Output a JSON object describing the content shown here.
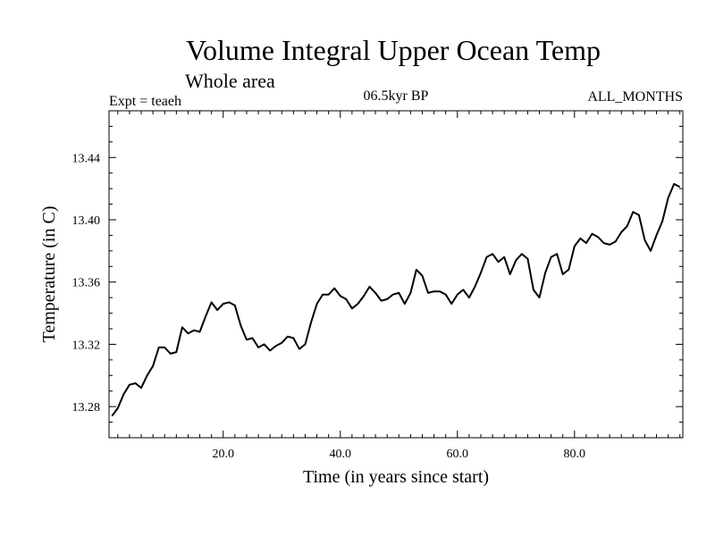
{
  "chart_data": {
    "type": "line",
    "title": "Volume Integral Upper Ocean Temp",
    "subtitle": "Whole area",
    "header_left": "Expt = teaeh",
    "header_center": "06.5kyr BP",
    "header_right": "ALL_MONTHS",
    "xlabel": "Time (in years since start)",
    "ylabel": "Temperature (in C)",
    "xlim": [
      0.5,
      98.5
    ],
    "ylim": [
      13.26,
      13.47
    ],
    "x_ticks": [
      20,
      40,
      60,
      80
    ],
    "x_tick_labels": [
      "20.0",
      "40.0",
      "60.0",
      "80.0"
    ],
    "y_ticks": [
      13.28,
      13.32,
      13.36,
      13.4,
      13.44
    ],
    "y_tick_labels": [
      "13.28",
      "13.32",
      "13.36",
      "13.40",
      "13.44"
    ],
    "series": [
      {
        "name": "Volume Integral Upper Ocean Temp",
        "x": [
          1,
          2,
          3,
          4,
          5,
          6,
          7,
          8,
          9,
          10,
          11,
          12,
          13,
          14,
          15,
          16,
          17,
          18,
          19,
          20,
          21,
          22,
          23,
          24,
          25,
          26,
          27,
          28,
          29,
          30,
          31,
          32,
          33,
          34,
          35,
          36,
          37,
          38,
          39,
          40,
          41,
          42,
          43,
          44,
          45,
          46,
          47,
          48,
          49,
          50,
          51,
          52,
          53,
          54,
          55,
          56,
          57,
          58,
          59,
          60,
          61,
          62,
          63,
          64,
          65,
          66,
          67,
          68,
          69,
          70,
          71,
          72,
          73,
          74,
          75,
          76,
          77,
          78,
          79,
          80,
          81,
          82,
          83,
          84,
          85,
          86,
          87,
          88,
          89,
          90,
          91,
          92,
          93,
          94,
          95,
          96,
          97,
          98
        ],
        "values": [
          13.274,
          13.279,
          13.288,
          13.294,
          13.295,
          13.292,
          13.3,
          13.306,
          13.318,
          13.318,
          13.314,
          13.315,
          13.331,
          13.327,
          13.329,
          13.328,
          13.338,
          13.347,
          13.342,
          13.346,
          13.347,
          13.345,
          13.332,
          13.323,
          13.324,
          13.318,
          13.32,
          13.316,
          13.319,
          13.321,
          13.325,
          13.324,
          13.317,
          13.32,
          13.334,
          13.346,
          13.352,
          13.352,
          13.356,
          13.351,
          13.349,
          13.343,
          13.346,
          13.351,
          13.357,
          13.353,
          13.348,
          13.349,
          13.352,
          13.353,
          13.346,
          13.353,
          13.368,
          13.364,
          13.353,
          13.354,
          13.354,
          13.352,
          13.346,
          13.352,
          13.355,
          13.35,
          13.357,
          13.366,
          13.376,
          13.378,
          13.373,
          13.376,
          13.365,
          13.374,
          13.378,
          13.375,
          13.355,
          13.35,
          13.366,
          13.376,
          13.378,
          13.365,
          13.368,
          13.383,
          13.388,
          13.385,
          13.391,
          13.389,
          13.385,
          13.384,
          13.386,
          13.392,
          13.396,
          13.405,
          13.403,
          13.387,
          13.38,
          13.39,
          13.399,
          13.414,
          13.423,
          13.421
        ],
        "color": "#000000"
      }
    ]
  }
}
